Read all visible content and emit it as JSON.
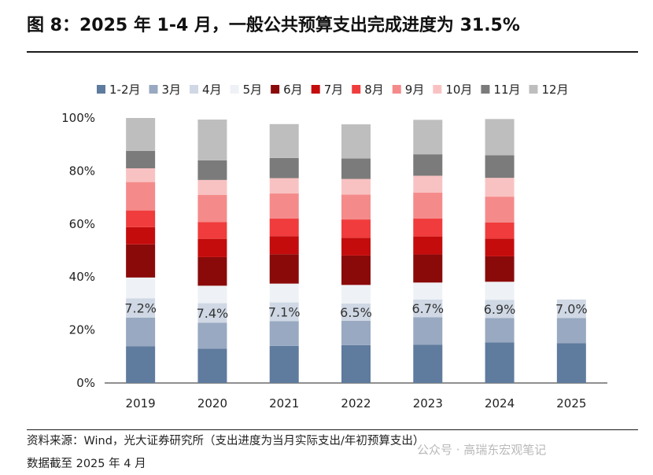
{
  "page": {
    "title": "图 8：2025 年 1-4 月，一般公共预算支出完成进度为 31.5%",
    "source": "资料来源：Wind，光大证券研究所（支出进度为当月实际支出/年初预算支出）",
    "cutoff": "数据截至 2025 年 4 月",
    "watermark": "公众号 · 高瑞东宏观笔记"
  },
  "chart_data": {
    "type": "bar",
    "stacked": true,
    "categories": [
      "2019",
      "2020",
      "2021",
      "2022",
      "2023",
      "2024",
      "2025"
    ],
    "ylim": [
      0,
      100
    ],
    "yticks": [
      "0%",
      "20%",
      "40%",
      "60%",
      "80%",
      "100%"
    ],
    "legend_position": "top",
    "series": [
      {
        "name": "1-2月",
        "color": "#5f7b9e",
        "values": [
          13.8,
          12.9,
          14.0,
          14.3,
          14.4,
          15.3,
          15.0
        ]
      },
      {
        "name": "3月",
        "color": "#98a9c1",
        "values": [
          10.9,
          9.8,
          9.3,
          9.2,
          10.4,
          9.2,
          9.5
        ]
      },
      {
        "name": "4月",
        "color": "#cfd8e4",
        "values": [
          7.2,
          7.4,
          7.1,
          6.5,
          6.7,
          6.9,
          7.0
        ]
      },
      {
        "name": "5月",
        "color": "#eef1f5",
        "values": [
          7.9,
          6.6,
          7.1,
          7.0,
          6.4,
          6.8,
          null
        ]
      },
      {
        "name": "6月",
        "color": "#8a0a0a",
        "values": [
          12.5,
          10.8,
          11.1,
          11.1,
          10.6,
          9.6,
          null
        ]
      },
      {
        "name": "7月",
        "color": "#c40c0c",
        "values": [
          6.5,
          6.9,
          6.8,
          6.7,
          6.8,
          6.7,
          null
        ]
      },
      {
        "name": "8月",
        "color": "#f03c3c",
        "values": [
          6.3,
          6.3,
          6.7,
          6.9,
          6.8,
          6.1,
          null
        ]
      },
      {
        "name": "9月",
        "color": "#f58a8a",
        "values": [
          10.7,
          10.3,
          9.4,
          9.4,
          9.7,
          9.7,
          null
        ]
      },
      {
        "name": "10月",
        "color": "#f9c2c2",
        "values": [
          5.2,
          5.6,
          5.8,
          5.9,
          6.4,
          7.1,
          null
        ]
      },
      {
        "name": "11月",
        "color": "#7b7b7b",
        "values": [
          6.6,
          7.4,
          7.6,
          7.7,
          8.1,
          8.5,
          null
        ]
      },
      {
        "name": "12月",
        "color": "#bebebe",
        "values": [
          12.4,
          15.4,
          12.8,
          12.9,
          13.0,
          13.7,
          null
        ]
      }
    ],
    "data_labels": {
      "series": "4月",
      "labels": [
        "7.2%",
        "7.4%",
        "7.1%",
        "6.5%",
        "6.7%",
        "6.9%",
        "7.0%"
      ]
    }
  }
}
